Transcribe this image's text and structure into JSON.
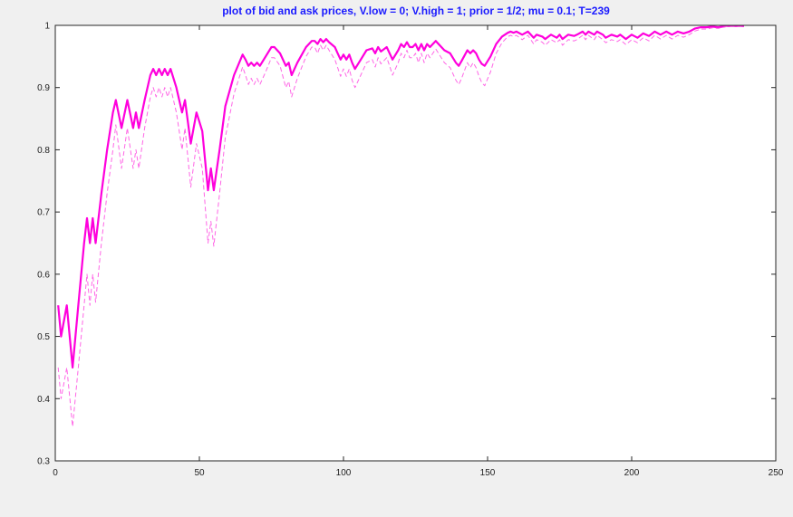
{
  "chart_data": {
    "type": "line",
    "title": "plot of bid and ask prices, V.low = 0; V.high = 1; prior = 1/2; mu = 0.1; T=239",
    "xlabel": "",
    "ylabel": "",
    "xlim": [
      0,
      250
    ],
    "ylim": [
      0.3,
      1
    ],
    "grid": false,
    "legend": "none",
    "x_ticks": [
      0,
      50,
      100,
      150,
      200,
      250
    ],
    "y_ticks": [
      0.3,
      0.4,
      0.5,
      0.6,
      0.7,
      0.8,
      0.9,
      1
    ],
    "x_tick_labels": [
      "0",
      "50",
      "100",
      "150",
      "200",
      "250"
    ],
    "y_tick_labels": [
      "0.3",
      "0.4",
      "0.5",
      "0.6",
      "0.7",
      "0.8",
      "0.9",
      "1"
    ],
    "series": [
      {
        "style": "solid",
        "color": "#ff00dd",
        "points": [
          [
            1,
            0.55
          ],
          [
            2,
            0.5
          ],
          [
            4,
            0.55
          ],
          [
            6,
            0.45
          ],
          [
            8,
            0.55
          ],
          [
            10,
            0.65
          ],
          [
            11,
            0.69
          ],
          [
            12,
            0.65
          ],
          [
            13,
            0.69
          ],
          [
            14,
            0.65
          ],
          [
            16,
            0.73
          ],
          [
            18,
            0.8
          ],
          [
            20,
            0.86
          ],
          [
            21,
            0.88
          ],
          [
            23,
            0.835
          ],
          [
            25,
            0.88
          ],
          [
            27,
            0.835
          ],
          [
            28,
            0.86
          ],
          [
            29,
            0.835
          ],
          [
            31,
            0.88
          ],
          [
            33,
            0.92
          ],
          [
            34,
            0.93
          ],
          [
            35,
            0.92
          ],
          [
            36,
            0.93
          ],
          [
            37,
            0.92
          ],
          [
            38,
            0.93
          ],
          [
            39,
            0.92
          ],
          [
            40,
            0.93
          ],
          [
            42,
            0.9
          ],
          [
            44,
            0.86
          ],
          [
            45,
            0.88
          ],
          [
            47,
            0.81
          ],
          [
            49,
            0.86
          ],
          [
            51,
            0.83
          ],
          [
            53,
            0.735
          ],
          [
            54,
            0.77
          ],
          [
            55,
            0.735
          ],
          [
            57,
            0.8
          ],
          [
            59,
            0.87
          ],
          [
            62,
            0.92
          ],
          [
            65,
            0.953
          ],
          [
            66,
            0.945
          ],
          [
            67,
            0.935
          ],
          [
            68,
            0.94
          ],
          [
            69,
            0.935
          ],
          [
            70,
            0.94
          ],
          [
            71,
            0.935
          ],
          [
            73,
            0.95
          ],
          [
            75,
            0.965
          ],
          [
            76,
            0.965
          ],
          [
            78,
            0.955
          ],
          [
            80,
            0.935
          ],
          [
            81,
            0.94
          ],
          [
            82,
            0.92
          ],
          [
            84,
            0.94
          ],
          [
            87,
            0.965
          ],
          [
            89,
            0.975
          ],
          [
            90,
            0.975
          ],
          [
            91,
            0.97
          ],
          [
            92,
            0.978
          ],
          [
            93,
            0.973
          ],
          [
            94,
            0.978
          ],
          [
            95,
            0.973
          ],
          [
            97,
            0.965
          ],
          [
            98,
            0.955
          ],
          [
            99,
            0.945
          ],
          [
            100,
            0.953
          ],
          [
            101,
            0.945
          ],
          [
            102,
            0.953
          ],
          [
            103,
            0.94
          ],
          [
            104,
            0.93
          ],
          [
            106,
            0.945
          ],
          [
            108,
            0.96
          ],
          [
            110,
            0.963
          ],
          [
            111,
            0.955
          ],
          [
            112,
            0.965
          ],
          [
            113,
            0.958
          ],
          [
            115,
            0.965
          ],
          [
            116,
            0.955
          ],
          [
            117,
            0.945
          ],
          [
            119,
            0.96
          ],
          [
            120,
            0.97
          ],
          [
            121,
            0.965
          ],
          [
            122,
            0.973
          ],
          [
            123,
            0.965
          ],
          [
            124,
            0.965
          ],
          [
            125,
            0.97
          ],
          [
            126,
            0.96
          ],
          [
            127,
            0.97
          ],
          [
            128,
            0.96
          ],
          [
            129,
            0.97
          ],
          [
            130,
            0.965
          ],
          [
            131,
            0.97
          ],
          [
            132,
            0.975
          ],
          [
            133,
            0.97
          ],
          [
            135,
            0.96
          ],
          [
            137,
            0.955
          ],
          [
            139,
            0.94
          ],
          [
            140,
            0.935
          ],
          [
            141,
            0.943
          ],
          [
            143,
            0.96
          ],
          [
            144,
            0.955
          ],
          [
            145,
            0.96
          ],
          [
            146,
            0.955
          ],
          [
            147,
            0.945
          ],
          [
            148,
            0.938
          ],
          [
            149,
            0.935
          ],
          [
            151,
            0.95
          ],
          [
            153,
            0.97
          ],
          [
            155,
            0.982
          ],
          [
            157,
            0.988
          ],
          [
            158,
            0.99
          ],
          [
            159,
            0.988
          ],
          [
            160,
            0.99
          ],
          [
            162,
            0.985
          ],
          [
            164,
            0.99
          ],
          [
            165,
            0.985
          ],
          [
            166,
            0.98
          ],
          [
            167,
            0.985
          ],
          [
            169,
            0.982
          ],
          [
            170,
            0.978
          ],
          [
            172,
            0.985
          ],
          [
            174,
            0.98
          ],
          [
            175,
            0.985
          ],
          [
            176,
            0.978
          ],
          [
            178,
            0.985
          ],
          [
            180,
            0.983
          ],
          [
            181,
            0.985
          ],
          [
            183,
            0.99
          ],
          [
            184,
            0.985
          ],
          [
            185,
            0.99
          ],
          [
            187,
            0.985
          ],
          [
            188,
            0.99
          ],
          [
            190,
            0.985
          ],
          [
            191,
            0.98
          ],
          [
            193,
            0.985
          ],
          [
            195,
            0.982
          ],
          [
            196,
            0.985
          ],
          [
            198,
            0.978
          ],
          [
            200,
            0.985
          ],
          [
            202,
            0.98
          ],
          [
            204,
            0.987
          ],
          [
            206,
            0.983
          ],
          [
            208,
            0.99
          ],
          [
            210,
            0.985
          ],
          [
            212,
            0.99
          ],
          [
            214,
            0.985
          ],
          [
            216,
            0.99
          ],
          [
            218,
            0.987
          ],
          [
            220,
            0.99
          ],
          [
            222,
            0.995
          ],
          [
            224,
            0.997
          ],
          [
            226,
            0.997
          ],
          [
            228,
            0.998
          ],
          [
            230,
            0.997
          ],
          [
            233,
            0.999
          ],
          [
            236,
            0.999
          ],
          [
            239,
            0.999
          ]
        ]
      },
      {
        "style": "dashed",
        "color": "#ff66e6",
        "points": [
          [
            1,
            0.45
          ],
          [
            2,
            0.4
          ],
          [
            4,
            0.45
          ],
          [
            6,
            0.355
          ],
          [
            8,
            0.45
          ],
          [
            10,
            0.55
          ],
          [
            11,
            0.6
          ],
          [
            12,
            0.55
          ],
          [
            13,
            0.6
          ],
          [
            14,
            0.555
          ],
          [
            16,
            0.65
          ],
          [
            18,
            0.73
          ],
          [
            20,
            0.8
          ],
          [
            21,
            0.84
          ],
          [
            23,
            0.77
          ],
          [
            25,
            0.835
          ],
          [
            27,
            0.77
          ],
          [
            28,
            0.8
          ],
          [
            29,
            0.77
          ],
          [
            31,
            0.835
          ],
          [
            33,
            0.885
          ],
          [
            34,
            0.9
          ],
          [
            35,
            0.885
          ],
          [
            36,
            0.9
          ],
          [
            37,
            0.885
          ],
          [
            38,
            0.9
          ],
          [
            39,
            0.885
          ],
          [
            40,
            0.9
          ],
          [
            42,
            0.86
          ],
          [
            44,
            0.8
          ],
          [
            45,
            0.835
          ],
          [
            47,
            0.74
          ],
          [
            49,
            0.81
          ],
          [
            51,
            0.77
          ],
          [
            53,
            0.65
          ],
          [
            54,
            0.685
          ],
          [
            55,
            0.645
          ],
          [
            57,
            0.73
          ],
          [
            59,
            0.82
          ],
          [
            62,
            0.89
          ],
          [
            65,
            0.933
          ],
          [
            66,
            0.92
          ],
          [
            67,
            0.905
          ],
          [
            68,
            0.915
          ],
          [
            69,
            0.905
          ],
          [
            70,
            0.915
          ],
          [
            71,
            0.905
          ],
          [
            73,
            0.925
          ],
          [
            75,
            0.948
          ],
          [
            76,
            0.948
          ],
          [
            78,
            0.935
          ],
          [
            80,
            0.9
          ],
          [
            81,
            0.91
          ],
          [
            82,
            0.885
          ],
          [
            84,
            0.915
          ],
          [
            87,
            0.95
          ],
          [
            89,
            0.965
          ],
          [
            90,
            0.965
          ],
          [
            91,
            0.955
          ],
          [
            92,
            0.968
          ],
          [
            93,
            0.96
          ],
          [
            94,
            0.968
          ],
          [
            95,
            0.96
          ],
          [
            97,
            0.945
          ],
          [
            98,
            0.932
          ],
          [
            99,
            0.918
          ],
          [
            100,
            0.93
          ],
          [
            101,
            0.918
          ],
          [
            102,
            0.93
          ],
          [
            103,
            0.912
          ],
          [
            104,
            0.9
          ],
          [
            106,
            0.92
          ],
          [
            108,
            0.94
          ],
          [
            110,
            0.945
          ],
          [
            111,
            0.933
          ],
          [
            112,
            0.948
          ],
          [
            113,
            0.938
          ],
          [
            115,
            0.948
          ],
          [
            116,
            0.935
          ],
          [
            117,
            0.92
          ],
          [
            119,
            0.94
          ],
          [
            120,
            0.955
          ],
          [
            121,
            0.948
          ],
          [
            122,
            0.96
          ],
          [
            123,
            0.948
          ],
          [
            124,
            0.948
          ],
          [
            125,
            0.955
          ],
          [
            126,
            0.94
          ],
          [
            127,
            0.955
          ],
          [
            128,
            0.94
          ],
          [
            129,
            0.955
          ],
          [
            130,
            0.948
          ],
          [
            131,
            0.955
          ],
          [
            132,
            0.962
          ],
          [
            133,
            0.955
          ],
          [
            135,
            0.94
          ],
          [
            137,
            0.932
          ],
          [
            139,
            0.912
          ],
          [
            140,
            0.905
          ],
          [
            141,
            0.915
          ],
          [
            143,
            0.94
          ],
          [
            144,
            0.932
          ],
          [
            145,
            0.94
          ],
          [
            146,
            0.932
          ],
          [
            147,
            0.918
          ],
          [
            148,
            0.908
          ],
          [
            149,
            0.903
          ],
          [
            151,
            0.925
          ],
          [
            153,
            0.955
          ],
          [
            155,
            0.972
          ],
          [
            157,
            0.982
          ],
          [
            158,
            0.984
          ],
          [
            159,
            0.982
          ],
          [
            160,
            0.984
          ],
          [
            162,
            0.977
          ],
          [
            164,
            0.984
          ],
          [
            165,
            0.977
          ],
          [
            166,
            0.97
          ],
          [
            167,
            0.977
          ],
          [
            169,
            0.973
          ],
          [
            170,
            0.968
          ],
          [
            172,
            0.977
          ],
          [
            174,
            0.972
          ],
          [
            175,
            0.977
          ],
          [
            176,
            0.968
          ],
          [
            178,
            0.977
          ],
          [
            180,
            0.975
          ],
          [
            181,
            0.977
          ],
          [
            183,
            0.984
          ],
          [
            184,
            0.977
          ],
          [
            185,
            0.984
          ],
          [
            187,
            0.977
          ],
          [
            188,
            0.984
          ],
          [
            190,
            0.977
          ],
          [
            191,
            0.972
          ],
          [
            193,
            0.977
          ],
          [
            195,
            0.974
          ],
          [
            196,
            0.977
          ],
          [
            198,
            0.969
          ],
          [
            200,
            0.977
          ],
          [
            202,
            0.972
          ],
          [
            204,
            0.98
          ],
          [
            206,
            0.975
          ],
          [
            208,
            0.984
          ],
          [
            210,
            0.978
          ],
          [
            212,
            0.984
          ],
          [
            214,
            0.978
          ],
          [
            216,
            0.984
          ],
          [
            218,
            0.981
          ],
          [
            220,
            0.985
          ],
          [
            222,
            0.991
          ],
          [
            224,
            0.994
          ],
          [
            226,
            0.994
          ],
          [
            228,
            0.996
          ],
          [
            230,
            0.995
          ],
          [
            233,
            0.998
          ],
          [
            236,
            0.998
          ],
          [
            239,
            0.998
          ]
        ]
      }
    ]
  },
  "colors": {
    "title": "#1a1aff",
    "figure_background": "#f0f0f0",
    "axes_background": "#ffffff",
    "axes_border": "#262626"
  }
}
